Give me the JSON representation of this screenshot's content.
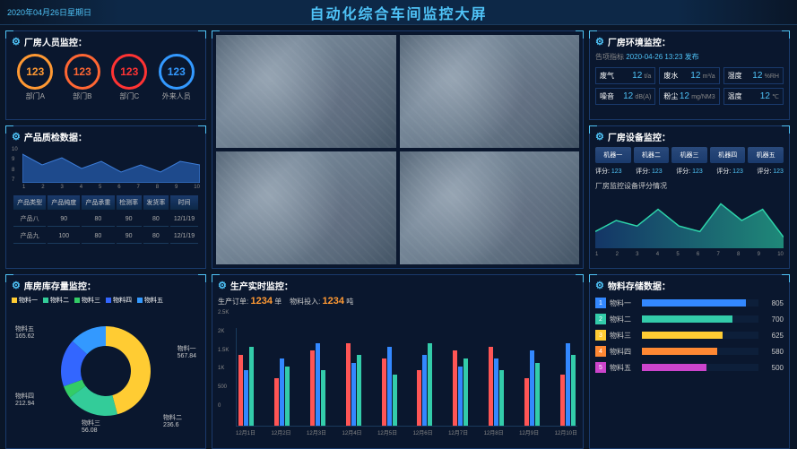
{
  "header": {
    "date": "2020年04月26日星期日",
    "title": "自动化综合车间监控大屏"
  },
  "personnel": {
    "title": "厂房人员监控：",
    "gauges": [
      {
        "value": "123",
        "label": "部门A",
        "color": "#ff9933"
      },
      {
        "value": "123",
        "label": "部门B",
        "color": "#ff6633"
      },
      {
        "value": "123",
        "label": "部门C",
        "color": "#ff3333"
      },
      {
        "value": "123",
        "label": "外来人员",
        "color": "#3399ff"
      }
    ]
  },
  "environment": {
    "title": "厂房环境监控：",
    "sub_prefix": "告项指标",
    "timestamp": "2020-04-26 13:23 发布",
    "items": [
      {
        "label": "废气",
        "value": "12",
        "unit": "t/a"
      },
      {
        "label": "废水",
        "value": "12",
        "unit": "m³/a"
      },
      {
        "label": "湿度",
        "value": "12",
        "unit": "%RH"
      },
      {
        "label": "噪音",
        "value": "12",
        "unit": "dB(A)"
      },
      {
        "label": "粉尘",
        "value": "12",
        "unit": "mg/NM3"
      },
      {
        "label": "温度",
        "value": "12",
        "unit": "℃"
      }
    ]
  },
  "quality": {
    "title": "产品质检数据：",
    "area": {
      "type": "area",
      "x": [
        1,
        2,
        3,
        4,
        5,
        6,
        7,
        8,
        9,
        10
      ],
      "y": [
        8,
        5,
        7,
        4,
        6,
        3,
        5,
        3,
        6,
        5
      ],
      "ylim": [
        0,
        10
      ],
      "yticks": [
        "10",
        "9",
        "8",
        "7"
      ],
      "fill": "#1e4a8c",
      "stroke": "#3d7dd8"
    },
    "table": {
      "columns": [
        "产品类型",
        "产品纯度",
        "产品承重",
        "检测率",
        "发货率",
        "时间"
      ],
      "rows": [
        [
          "产品八",
          "90",
          "80",
          "90",
          "80",
          "12/1/19"
        ],
        [
          "产品九",
          "100",
          "80",
          "90",
          "80",
          "12/1/19"
        ]
      ]
    }
  },
  "equipment": {
    "title": "厂房设备监控：",
    "machines": [
      "机器一",
      "机器二",
      "机器三",
      "机器四",
      "机器五"
    ],
    "score_label": "评分:",
    "score_value": "123",
    "sub": "厂房监控设备评分情况",
    "line": {
      "type": "area",
      "x": [
        1,
        2,
        3,
        4,
        5,
        6,
        7,
        8,
        9,
        10
      ],
      "y": [
        3,
        5,
        4,
        7,
        4,
        3,
        8,
        5,
        7,
        2
      ],
      "ylim": [
        0,
        10
      ],
      "gradient_from": "#1a4a8c",
      "gradient_to": "#2dd4aa",
      "stroke": "#2dd4aa"
    }
  },
  "inventory": {
    "title": "库房库存量监控：",
    "type": "donut",
    "items": [
      {
        "name": "物料一",
        "value": 567.84,
        "color": "#ffcc33"
      },
      {
        "name": "物料二",
        "value": 236.6,
        "color": "#33cc99"
      },
      {
        "name": "物料三",
        "value": 56.08,
        "color": "#33cc66"
      },
      {
        "name": "物料四",
        "value": 212.94,
        "color": "#3366ff"
      },
      {
        "name": "物料五",
        "value": 165.62,
        "color": "#3399ff"
      }
    ]
  },
  "production": {
    "title": "生产实时监控：",
    "stats": {
      "orders_label": "生产订单:",
      "orders_value": "1234",
      "orders_unit": "单",
      "input_label": "物料投入:",
      "input_value": "1234",
      "input_unit": "吨"
    },
    "chart": {
      "type": "grouped-bar",
      "ylim": [
        0,
        2500
      ],
      "yticks": [
        "2.5K",
        "2K",
        "1.5K",
        "1K",
        "500",
        "0"
      ],
      "categories": [
        "12月1日",
        "12月2日",
        "12月3日",
        "12月4日",
        "12月5日",
        "12月6日",
        "12月7日",
        "12月8日",
        "12月9日",
        "12月10日"
      ],
      "colors": [
        "#ff5555",
        "#3388ff",
        "#33ccaa"
      ],
      "series": [
        [
          1800,
          1200,
          1900,
          2100,
          1700,
          1400,
          1900,
          2000,
          1200,
          1300
        ],
        [
          1400,
          1700,
          2100,
          1600,
          2000,
          1800,
          1500,
          1700,
          1900,
          2100
        ],
        [
          2000,
          1500,
          1400,
          1800,
          1300,
          2100,
          1700,
          1400,
          1600,
          1800
        ]
      ]
    }
  },
  "storage": {
    "title": "物料存储数据：",
    "type": "hbar",
    "max": 900,
    "colors": [
      "#3388ff",
      "#33ccaa",
      "#ffcc33",
      "#ff8833",
      "#cc44cc"
    ],
    "items": [
      {
        "rank": "1",
        "name": "物料一",
        "value": 805
      },
      {
        "rank": "2",
        "name": "物料二",
        "value": 700
      },
      {
        "rank": "3",
        "name": "物料三",
        "value": 625
      },
      {
        "rank": "4",
        "name": "物料四",
        "value": 580
      },
      {
        "rank": "5",
        "name": "物料五",
        "value": 500
      }
    ]
  }
}
